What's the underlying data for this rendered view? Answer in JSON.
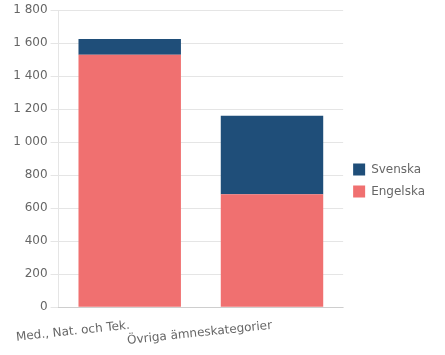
{
  "chart_data": {
    "type": "bar",
    "stacked": true,
    "categories": [
      "Med., Nat. och Tek.",
      "Övriga ämneskategorier"
    ],
    "series": [
      {
        "name": "Engelska",
        "color": "#F07070",
        "values": [
          1530,
          685
        ]
      },
      {
        "name": "Svenska",
        "color": "#1F4E79",
        "values": [
          95,
          475
        ]
      }
    ],
    "ylim": [
      0,
      1800
    ],
    "yticks": [
      0,
      200,
      400,
      600,
      800,
      {
        "value": 1000,
        "label": "1 000"
      },
      {
        "value": 1200,
        "label": "1 200"
      },
      {
        "value": 1400,
        "label": "1 400"
      },
      {
        "value": 1600,
        "label": "1 600"
      },
      {
        "value": 1800,
        "label": "1 800"
      }
    ],
    "grid": "y",
    "legend": "right"
  }
}
